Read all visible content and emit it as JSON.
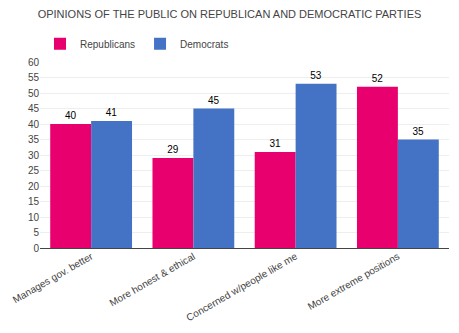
{
  "chart_data": {
    "type": "bar",
    "title": "OPINIONS OF THE PUBLIC ON REPUBLICAN AND DEMOCRATIC PARTIES",
    "categories": [
      "Manages gov. better",
      "More honest & ethical",
      "Concerned w/people like me",
      "More extreme positions"
    ],
    "series": [
      {
        "name": "Republicans",
        "color": "#E8006E",
        "values": [
          40,
          29,
          31,
          52
        ]
      },
      {
        "name": "Democrats",
        "color": "#4472C4",
        "values": [
          41,
          45,
          53,
          35
        ]
      }
    ],
    "ylim": [
      0,
      60
    ],
    "yticks": [
      0,
      5,
      10,
      15,
      20,
      25,
      30,
      35,
      40,
      45,
      50,
      55,
      60
    ],
    "grid": true,
    "legend": "upper left",
    "data_labels": true
  }
}
